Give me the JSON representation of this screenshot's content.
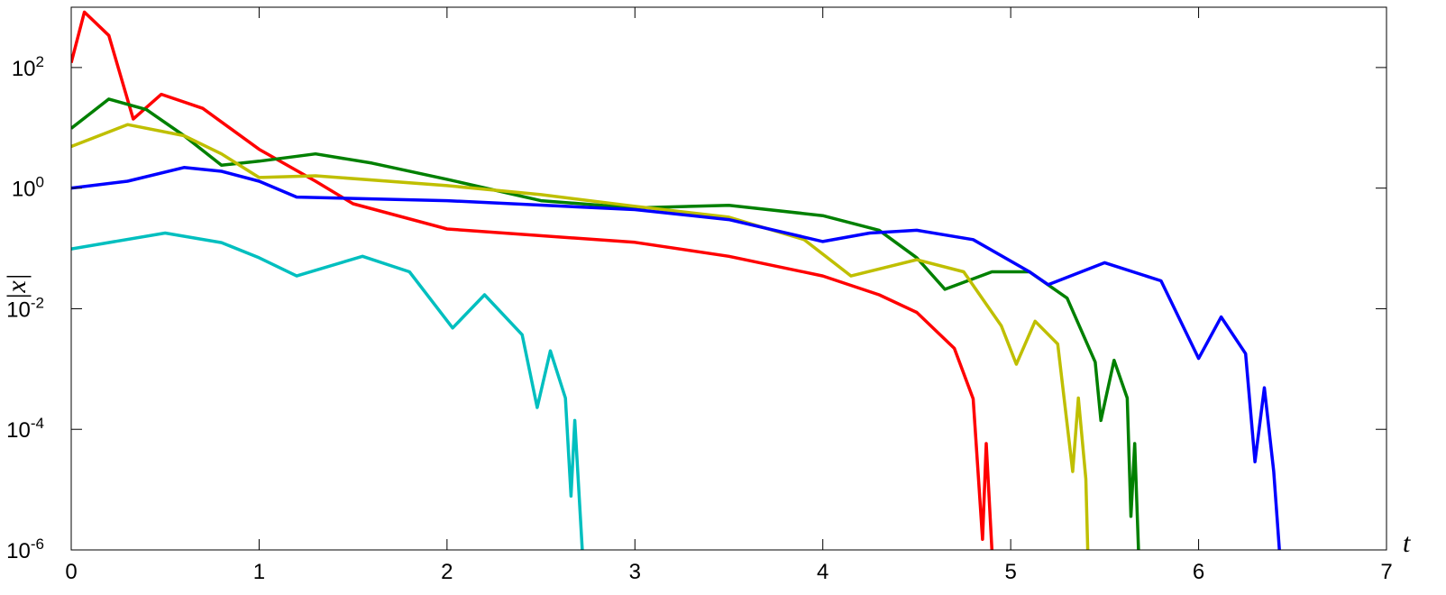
{
  "chart_data": {
    "type": "line",
    "yscale": "log",
    "grid": false,
    "xlabel": "t",
    "ylabel": "|x|",
    "xlim": [
      0,
      7
    ],
    "xticks": [
      0,
      1,
      2,
      3,
      4,
      5,
      6,
      7
    ],
    "ylim": [
      1e-06,
      1000
    ],
    "yticks": [
      {
        "value": 1e-06,
        "label": "10^-6"
      },
      {
        "value": 0.0001,
        "label": "10^-4"
      },
      {
        "value": 0.01,
        "label": "10^-2"
      },
      {
        "value": 1,
        "label": "10^0"
      },
      {
        "value": 100,
        "label": "10^2"
      }
    ],
    "series": [
      {
        "color": "#ff0000",
        "x": [
          0,
          0.07,
          0.2,
          0.33,
          0.48,
          0.7,
          1.0,
          1.3,
          1.5,
          2.0,
          3.0,
          3.5,
          4.0,
          4.3,
          4.5,
          4.7,
          4.8,
          4.85,
          4.87,
          4.9
        ],
        "values": [
          120,
          830,
          340,
          14,
          36,
          21,
          4.4,
          1.3,
          0.55,
          0.21,
          0.126,
          0.074,
          0.035,
          0.017,
          0.0087,
          0.0022,
          0.00032,
          1.5e-06,
          5.8e-05,
          1e-06
        ]
      },
      {
        "color": "#008000",
        "x": [
          0,
          0.2,
          0.4,
          0.6,
          0.8,
          1.0,
          1.3,
          1.6,
          2.0,
          2.5,
          3.0,
          3.5,
          4.0,
          4.3,
          4.5,
          4.65,
          4.9,
          5.1,
          5.3,
          5.45,
          5.48,
          5.55,
          5.62,
          5.64,
          5.66,
          5.68
        ],
        "values": [
          9.8,
          30,
          20,
          7.4,
          2.4,
          2.8,
          3.7,
          2.6,
          1.4,
          0.62,
          0.47,
          0.52,
          0.35,
          0.2,
          0.07,
          0.021,
          0.041,
          0.041,
          0.015,
          0.0013,
          0.00014,
          0.0014,
          0.00033,
          3.6e-06,
          5.8e-05,
          1e-06
        ]
      },
      {
        "color": "#bfbf00",
        "x": [
          0,
          0.3,
          0.6,
          0.8,
          1.0,
          1.3,
          2.0,
          2.5,
          3.0,
          3.5,
          3.9,
          4.15,
          4.5,
          4.75,
          4.95,
          5.03,
          5.13,
          5.25,
          5.33,
          5.36,
          5.4,
          5.41
        ],
        "values": [
          4.9,
          11.3,
          7.4,
          3.7,
          1.5,
          1.6,
          1.1,
          0.78,
          0.5,
          0.33,
          0.14,
          0.035,
          0.065,
          0.041,
          0.0052,
          0.0012,
          0.0062,
          0.0026,
          2e-05,
          0.00033,
          1.5e-05,
          1e-06
        ]
      },
      {
        "color": "#0000ff",
        "x": [
          0,
          0.3,
          0.6,
          0.8,
          1.0,
          1.2,
          2.0,
          3.0,
          3.5,
          4.0,
          4.25,
          4.5,
          4.8,
          5.1,
          5.2,
          5.5,
          5.8,
          6.0,
          6.12,
          6.25,
          6.3,
          6.35,
          6.4,
          6.43
        ],
        "values": [
          1,
          1.3,
          2.2,
          1.9,
          1.3,
          0.71,
          0.62,
          0.44,
          0.3,
          0.13,
          0.18,
          0.2,
          0.14,
          0.041,
          0.025,
          0.058,
          0.029,
          0.0015,
          0.0073,
          0.0018,
          2.9e-05,
          0.00049,
          2e-05,
          1e-06
        ]
      },
      {
        "color": "#00bfbf",
        "x": [
          0,
          0.5,
          0.8,
          1.0,
          1.2,
          1.55,
          1.8,
          2.03,
          2.2,
          2.4,
          2.48,
          2.55,
          2.63,
          2.66,
          2.68,
          2.72
        ],
        "values": [
          0.098,
          0.18,
          0.125,
          0.07,
          0.035,
          0.074,
          0.041,
          0.0048,
          0.017,
          0.0037,
          0.00023,
          0.002,
          0.00033,
          7.8e-06,
          0.00014,
          1e-06
        ]
      }
    ]
  }
}
